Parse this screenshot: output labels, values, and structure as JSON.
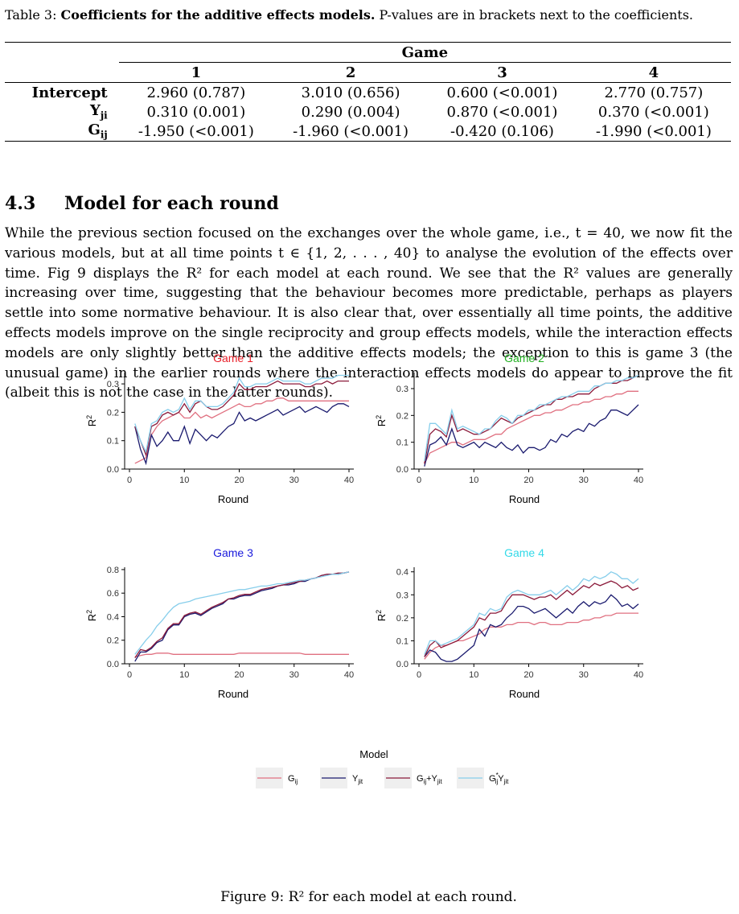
{
  "table": {
    "caption_label": "Table 3:",
    "caption_title": "Coefficients for the additive effects models.",
    "caption_text": "P-values are in brackets next to the coefficients.",
    "group_header": "Game",
    "columns": [
      "1",
      "2",
      "3",
      "4"
    ],
    "rows": [
      {
        "label": "Intercept",
        "cells": [
          "2.960 (0.787)",
          "3.010 (0.656)",
          "0.600 (<0.001)",
          "2.770 (0.757)"
        ]
      },
      {
        "label": "Yji",
        "cells": [
          "0.310 (0.001)",
          "0.290 (0.004)",
          "0.870 (<0.001)",
          "0.370 (<0.001)"
        ]
      },
      {
        "label": "Gij",
        "cells": [
          "-1.950 (<0.001)",
          "-1.960 (<0.001)",
          "-0.420 (0.106)",
          "-1.990 (<0.001)"
        ]
      }
    ]
  },
  "section": {
    "number": "4.3",
    "title": "Model for each round"
  },
  "paragraph": "While the previous section focused on the exchanges over the whole game, i.e., t = 40, we now fit the various models, but at all time points t ∈ {1, 2, . . . , 40} to analyse the evolution of the effects over time. Fig 9 displays the R² for each model at each round. We see that the R² values are generally increasing over time, suggesting that the behaviour becomes more predictable, perhaps as players settle into some normative behaviour. It is also clear that, over essentially all time points, the additive effects models improve on the single reciprocity and group effects models, while the interaction effects models are only slightly better than the additive effects models; the exception to this is game 3 (the unusual game) in the earlier rounds where the interaction effects models do appear to improve the fit (albeit this is not the case in the latter rounds).",
  "legend": {
    "title": "Model",
    "entries": [
      {
        "label": "Gij",
        "color": "#e07080"
      },
      {
        "label": "Yjit",
        "color": "#1a1a6e"
      },
      {
        "label": "Gij+Yjit",
        "color": "#8b1a3a"
      },
      {
        "label": "G*ijYjit",
        "color": "#87ceeb"
      }
    ]
  },
  "figure_caption": "Figure 9: R² for each model at each round.",
  "chart_data": [
    {
      "type": "line",
      "title": "Game 1",
      "title_color": "#e8202a",
      "xlabel": "Round",
      "ylabel": "R²",
      "xlim": [
        0,
        40
      ],
      "ylim": [
        0,
        0.34
      ],
      "xticks": [
        0,
        10,
        20,
        30,
        40
      ],
      "yticks": [
        0.0,
        0.1,
        0.2,
        0.3
      ],
      "ytick_labels": [
        "0.0",
        "0.1",
        "0.2",
        "0.3"
      ],
      "x": [
        1,
        2,
        3,
        4,
        5,
        6,
        7,
        8,
        9,
        10,
        11,
        12,
        13,
        14,
        15,
        16,
        17,
        18,
        19,
        20,
        21,
        22,
        23,
        24,
        25,
        26,
        27,
        28,
        29,
        30,
        31,
        32,
        33,
        34,
        35,
        36,
        37,
        38,
        39,
        40
      ],
      "series": [
        {
          "name": "Gij",
          "color": "#e07080",
          "values": [
            0.02,
            0.03,
            0.04,
            0.12,
            0.15,
            0.17,
            0.18,
            0.19,
            0.2,
            0.18,
            0.18,
            0.2,
            0.18,
            0.19,
            0.18,
            0.19,
            0.2,
            0.21,
            0.22,
            0.23,
            0.22,
            0.22,
            0.23,
            0.23,
            0.24,
            0.24,
            0.25,
            0.25,
            0.24,
            0.24,
            0.24,
            0.24,
            0.24,
            0.24,
            0.24,
            0.24,
            0.24,
            0.24,
            0.24,
            0.24
          ]
        },
        {
          "name": "Yjit",
          "color": "#1a1a6e",
          "values": [
            0.15,
            0.07,
            0.02,
            0.12,
            0.08,
            0.1,
            0.13,
            0.1,
            0.1,
            0.15,
            0.09,
            0.14,
            0.12,
            0.1,
            0.12,
            0.11,
            0.13,
            0.15,
            0.16,
            0.2,
            0.17,
            0.18,
            0.17,
            0.18,
            0.19,
            0.2,
            0.21,
            0.19,
            0.2,
            0.21,
            0.22,
            0.2,
            0.21,
            0.22,
            0.21,
            0.2,
            0.22,
            0.23,
            0.23,
            0.22
          ]
        },
        {
          "name": "Gij+Yjit",
          "color": "#8b1a3a",
          "values": [
            0.15,
            0.1,
            0.05,
            0.15,
            0.16,
            0.19,
            0.2,
            0.19,
            0.2,
            0.23,
            0.2,
            0.23,
            0.24,
            0.22,
            0.21,
            0.21,
            0.22,
            0.24,
            0.26,
            0.3,
            0.28,
            0.28,
            0.29,
            0.29,
            0.29,
            0.3,
            0.31,
            0.3,
            0.3,
            0.3,
            0.3,
            0.29,
            0.29,
            0.3,
            0.3,
            0.31,
            0.3,
            0.31,
            0.31,
            0.31
          ]
        },
        {
          "name": "G*ijYjit",
          "color": "#87ceeb",
          "values": [
            0.16,
            0.1,
            0.06,
            0.16,
            0.17,
            0.2,
            0.21,
            0.2,
            0.21,
            0.25,
            0.21,
            0.24,
            0.24,
            0.22,
            0.22,
            0.22,
            0.23,
            0.25,
            0.27,
            0.32,
            0.29,
            0.29,
            0.3,
            0.3,
            0.3,
            0.31,
            0.32,
            0.31,
            0.31,
            0.31,
            0.31,
            0.3,
            0.3,
            0.31,
            0.32,
            0.32,
            0.32,
            0.33,
            0.33,
            0.33
          ]
        }
      ]
    },
    {
      "type": "line",
      "title": "Game 2",
      "title_color": "#22b022",
      "xlabel": "Round",
      "ylabel": "R²",
      "xlim": [
        0,
        40
      ],
      "ylim": [
        0,
        0.36
      ],
      "xticks": [
        0,
        10,
        20,
        30,
        40
      ],
      "yticks": [
        0.0,
        0.1,
        0.2,
        0.3
      ],
      "ytick_labels": [
        "0.0",
        "0.1",
        "0.2",
        "0.3"
      ],
      "x": [
        1,
        2,
        3,
        4,
        5,
        6,
        7,
        8,
        9,
        10,
        11,
        12,
        13,
        14,
        15,
        16,
        17,
        18,
        19,
        20,
        21,
        22,
        23,
        24,
        25,
        26,
        27,
        28,
        29,
        30,
        31,
        32,
        33,
        34,
        35,
        36,
        37,
        38,
        39,
        40
      ],
      "series": [
        {
          "name": "Gij",
          "color": "#e07080",
          "values": [
            0.02,
            0.06,
            0.07,
            0.08,
            0.09,
            0.1,
            0.1,
            0.09,
            0.1,
            0.11,
            0.11,
            0.11,
            0.12,
            0.13,
            0.13,
            0.15,
            0.16,
            0.17,
            0.18,
            0.19,
            0.2,
            0.2,
            0.21,
            0.21,
            0.22,
            0.22,
            0.23,
            0.24,
            0.24,
            0.25,
            0.25,
            0.26,
            0.26,
            0.27,
            0.27,
            0.28,
            0.28,
            0.29,
            0.29,
            0.29
          ]
        },
        {
          "name": "Yjit",
          "color": "#1a1a6e",
          "values": [
            0.01,
            0.09,
            0.1,
            0.12,
            0.09,
            0.15,
            0.09,
            0.08,
            0.09,
            0.1,
            0.08,
            0.1,
            0.09,
            0.08,
            0.1,
            0.08,
            0.07,
            0.09,
            0.06,
            0.08,
            0.08,
            0.07,
            0.08,
            0.11,
            0.1,
            0.13,
            0.12,
            0.14,
            0.15,
            0.14,
            0.17,
            0.16,
            0.18,
            0.19,
            0.22,
            0.22,
            0.21,
            0.2,
            0.22,
            0.24
          ]
        },
        {
          "name": "Gij+Yjit",
          "color": "#8b1a3a",
          "values": [
            0.02,
            0.13,
            0.15,
            0.14,
            0.12,
            0.2,
            0.14,
            0.15,
            0.14,
            0.13,
            0.13,
            0.14,
            0.15,
            0.17,
            0.19,
            0.18,
            0.17,
            0.19,
            0.2,
            0.21,
            0.22,
            0.23,
            0.24,
            0.24,
            0.26,
            0.26,
            0.27,
            0.27,
            0.28,
            0.28,
            0.28,
            0.3,
            0.31,
            0.32,
            0.32,
            0.32,
            0.33,
            0.33,
            0.34,
            0.35
          ]
        },
        {
          "name": "G*ijYjit",
          "color": "#87ceeb",
          "values": [
            0.03,
            0.17,
            0.17,
            0.15,
            0.13,
            0.22,
            0.15,
            0.16,
            0.15,
            0.14,
            0.13,
            0.15,
            0.15,
            0.18,
            0.2,
            0.19,
            0.17,
            0.2,
            0.2,
            0.22,
            0.22,
            0.24,
            0.24,
            0.25,
            0.26,
            0.27,
            0.27,
            0.28,
            0.29,
            0.29,
            0.29,
            0.31,
            0.31,
            0.32,
            0.32,
            0.33,
            0.33,
            0.34,
            0.34,
            0.35
          ]
        }
      ]
    },
    {
      "type": "line",
      "title": "Game 3",
      "title_color": "#1a1adc",
      "xlabel": "Round",
      "ylabel": "R²",
      "xlim": [
        0,
        40
      ],
      "ylim": [
        0,
        0.82
      ],
      "xticks": [
        0,
        10,
        20,
        30,
        40
      ],
      "yticks": [
        0.0,
        0.2,
        0.4,
        0.6,
        0.8
      ],
      "ytick_labels": [
        "0.0",
        "0.2",
        "0.4",
        "0.6",
        "0.8"
      ],
      "x": [
        1,
        2,
        3,
        4,
        5,
        6,
        7,
        8,
        9,
        10,
        11,
        12,
        13,
        14,
        15,
        16,
        17,
        18,
        19,
        20,
        21,
        22,
        23,
        24,
        25,
        26,
        27,
        28,
        29,
        30,
        31,
        32,
        33,
        34,
        35,
        36,
        37,
        38,
        39,
        40
      ],
      "series": [
        {
          "name": "Gij",
          "color": "#e07080",
          "values": [
            0.06,
            0.07,
            0.08,
            0.08,
            0.09,
            0.09,
            0.09,
            0.08,
            0.08,
            0.08,
            0.08,
            0.08,
            0.08,
            0.08,
            0.08,
            0.08,
            0.08,
            0.08,
            0.08,
            0.09,
            0.09,
            0.09,
            0.09,
            0.09,
            0.09,
            0.09,
            0.09,
            0.09,
            0.09,
            0.09,
            0.09,
            0.08,
            0.08,
            0.08,
            0.08,
            0.08,
            0.08,
            0.08,
            0.08,
            0.08
          ]
        },
        {
          "name": "Yjit",
          "color": "#1a1a6e",
          "values": [
            0.02,
            0.1,
            0.1,
            0.13,
            0.18,
            0.2,
            0.29,
            0.33,
            0.33,
            0.4,
            0.42,
            0.43,
            0.41,
            0.44,
            0.47,
            0.49,
            0.51,
            0.55,
            0.55,
            0.57,
            0.58,
            0.58,
            0.6,
            0.62,
            0.63,
            0.64,
            0.66,
            0.67,
            0.67,
            0.68,
            0.7,
            0.7,
            0.72,
            0.73,
            0.75,
            0.76,
            0.76,
            0.76,
            0.77,
            0.78
          ]
        },
        {
          "name": "Gij+Yjit",
          "color": "#8b1a3a",
          "values": [
            0.05,
            0.12,
            0.11,
            0.14,
            0.19,
            0.22,
            0.3,
            0.34,
            0.34,
            0.41,
            0.43,
            0.44,
            0.42,
            0.45,
            0.48,
            0.5,
            0.52,
            0.55,
            0.56,
            0.58,
            0.59,
            0.59,
            0.61,
            0.63,
            0.64,
            0.65,
            0.66,
            0.67,
            0.68,
            0.69,
            0.7,
            0.71,
            0.72,
            0.73,
            0.75,
            0.76,
            0.76,
            0.77,
            0.77,
            0.78
          ]
        },
        {
          "name": "G*ijYjit",
          "color": "#87ceeb",
          "values": [
            0.08,
            0.14,
            0.2,
            0.25,
            0.32,
            0.37,
            0.43,
            0.48,
            0.51,
            0.52,
            0.53,
            0.55,
            0.56,
            0.57,
            0.58,
            0.59,
            0.6,
            0.61,
            0.62,
            0.63,
            0.63,
            0.64,
            0.65,
            0.66,
            0.66,
            0.67,
            0.68,
            0.68,
            0.69,
            0.7,
            0.71,
            0.71,
            0.72,
            0.73,
            0.74,
            0.75,
            0.76,
            0.76,
            0.77,
            0.78
          ]
        }
      ]
    },
    {
      "type": "line",
      "title": "Game 4",
      "title_color": "#33d9e8",
      "xlabel": "Round",
      "ylabel": "R²",
      "xlim": [
        0,
        40
      ],
      "ylim": [
        0,
        0.42
      ],
      "xticks": [
        0,
        10,
        20,
        30,
        40
      ],
      "yticks": [
        0.0,
        0.1,
        0.2,
        0.3,
        0.4
      ],
      "ytick_labels": [
        "0.0",
        "0.1",
        "0.2",
        "0.3",
        "0.4"
      ],
      "x": [
        1,
        2,
        3,
        4,
        5,
        6,
        7,
        8,
        9,
        10,
        11,
        12,
        13,
        14,
        15,
        16,
        17,
        18,
        19,
        20,
        21,
        22,
        23,
        24,
        25,
        26,
        27,
        28,
        29,
        30,
        31,
        32,
        33,
        34,
        35,
        36,
        37,
        38,
        39,
        40
      ],
      "series": [
        {
          "name": "Gij",
          "color": "#e07080",
          "values": [
            0.02,
            0.05,
            0.07,
            0.08,
            0.08,
            0.09,
            0.1,
            0.1,
            0.11,
            0.12,
            0.13,
            0.15,
            0.16,
            0.16,
            0.16,
            0.17,
            0.17,
            0.18,
            0.18,
            0.18,
            0.17,
            0.18,
            0.18,
            0.17,
            0.17,
            0.17,
            0.18,
            0.18,
            0.18,
            0.19,
            0.19,
            0.2,
            0.2,
            0.21,
            0.21,
            0.22,
            0.22,
            0.22,
            0.22,
            0.22
          ]
        },
        {
          "name": "Yjit",
          "color": "#1a1a6e",
          "values": [
            0.03,
            0.06,
            0.05,
            0.02,
            0.01,
            0.01,
            0.02,
            0.04,
            0.06,
            0.08,
            0.15,
            0.12,
            0.17,
            0.16,
            0.17,
            0.2,
            0.22,
            0.25,
            0.25,
            0.24,
            0.22,
            0.23,
            0.24,
            0.22,
            0.2,
            0.22,
            0.24,
            0.22,
            0.25,
            0.27,
            0.25,
            0.27,
            0.26,
            0.27,
            0.3,
            0.28,
            0.25,
            0.26,
            0.24,
            0.26
          ]
        },
        {
          "name": "Gij+Yjit",
          "color": "#8b1a3a",
          "values": [
            0.03,
            0.08,
            0.1,
            0.07,
            0.08,
            0.09,
            0.1,
            0.12,
            0.14,
            0.16,
            0.2,
            0.19,
            0.22,
            0.22,
            0.23,
            0.27,
            0.3,
            0.3,
            0.3,
            0.29,
            0.28,
            0.29,
            0.29,
            0.3,
            0.28,
            0.3,
            0.32,
            0.3,
            0.32,
            0.34,
            0.33,
            0.35,
            0.34,
            0.35,
            0.36,
            0.35,
            0.33,
            0.34,
            0.32,
            0.33
          ]
        },
        {
          "name": "G*ijYjit",
          "color": "#87ceeb",
          "values": [
            0.04,
            0.1,
            0.1,
            0.08,
            0.09,
            0.1,
            0.11,
            0.13,
            0.15,
            0.17,
            0.22,
            0.21,
            0.24,
            0.23,
            0.24,
            0.29,
            0.31,
            0.32,
            0.31,
            0.3,
            0.3,
            0.3,
            0.31,
            0.32,
            0.3,
            0.32,
            0.34,
            0.32,
            0.34,
            0.37,
            0.36,
            0.38,
            0.37,
            0.38,
            0.4,
            0.39,
            0.37,
            0.37,
            0.35,
            0.37
          ]
        }
      ]
    }
  ]
}
